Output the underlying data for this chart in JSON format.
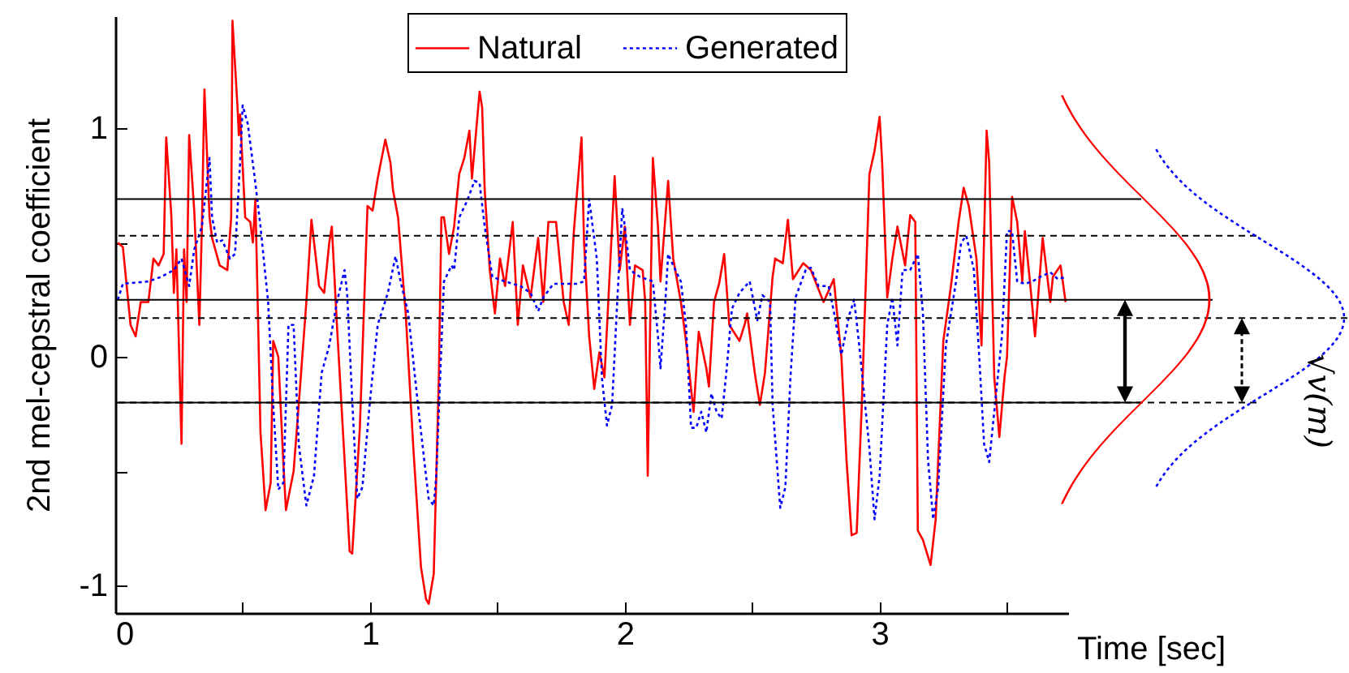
{
  "chart_data": {
    "type": "line",
    "xlabel": "Time [sec]",
    "ylabel": "2nd mel-cepstral coefficient",
    "xlim": [
      0,
      3.74
    ],
    "ylim": [
      -1.12,
      1.49
    ],
    "xticks": [
      0,
      {
        "value": 0.5,
        "label": null
      },
      1,
      {
        "value": 1.5,
        "label": null
      },
      2,
      {
        "value": 2.5,
        "label": null
      },
      3,
      {
        "value": 3.5,
        "label": null
      }
    ],
    "yticks": [
      -1,
      {
        "value": -0.5,
        "label": null
      },
      0,
      {
        "value": 0.5,
        "label": null
      },
      1
    ],
    "grid": false,
    "legend": "top",
    "marker": "none",
    "series": [
      {
        "name": "Natural",
        "color": "#ff0000",
        "line_style": "solid",
        "x": [
          0.01,
          0.03,
          0.06,
          0.08,
          0.1,
          0.13,
          0.15,
          0.17,
          0.19,
          0.2,
          0.22,
          0.23,
          0.24,
          0.26,
          0.27,
          0.28,
          0.29,
          0.31,
          0.33,
          0.34,
          0.35,
          0.37,
          0.38,
          0.41,
          0.44,
          0.455,
          0.46,
          0.48,
          0.485,
          0.49,
          0.51,
          0.53,
          0.54,
          0.55,
          0.56,
          0.57,
          0.59,
          0.61,
          0.62,
          0.64,
          0.66,
          0.67,
          0.7,
          0.72,
          0.75,
          0.77,
          0.8,
          0.82,
          0.84,
          0.85,
          0.87,
          0.9,
          0.92,
          0.93,
          0.96,
          0.99,
          1.01,
          1.03,
          1.06,
          1.08,
          1.09,
          1.11,
          1.14,
          1.17,
          1.2,
          1.22,
          1.23,
          1.25,
          1.27,
          1.28,
          1.29,
          1.31,
          1.33,
          1.35,
          1.37,
          1.39,
          1.4,
          1.43,
          1.44,
          1.45,
          1.47,
          1.49,
          1.51,
          1.53,
          1.56,
          1.58,
          1.6,
          1.63,
          1.66,
          1.68,
          1.7,
          1.73,
          1.76,
          1.78,
          1.8,
          1.83,
          1.84,
          1.86,
          1.88,
          1.9,
          1.92,
          1.96,
          1.98,
          2.0,
          2.02,
          2.04,
          2.07,
          2.08,
          2.09,
          2.11,
          2.13,
          2.14,
          2.17,
          2.19,
          2.22,
          2.24,
          2.26,
          2.27,
          2.29,
          2.32,
          2.33,
          2.35,
          2.37,
          2.39,
          2.41,
          2.45,
          2.47,
          2.48,
          2.51,
          2.53,
          2.55,
          2.58,
          2.59,
          2.62,
          2.64,
          2.66,
          2.7,
          2.73,
          2.78,
          2.82,
          2.85,
          2.87,
          2.89,
          2.91,
          2.93,
          2.96,
          2.98,
          3.0,
          3.01,
          3.03,
          3.05,
          3.07,
          3.1,
          3.12,
          3.14,
          3.15,
          3.17,
          3.2,
          3.22,
          3.25,
          3.28,
          3.31,
          3.33,
          3.35,
          3.38,
          3.4,
          3.42,
          3.43,
          3.45,
          3.47,
          3.49,
          3.5,
          3.52,
          3.54,
          3.56,
          3.57,
          3.59,
          3.61,
          3.64,
          3.67,
          3.68,
          3.71,
          3.73
        ],
        "values": [
          0.5,
          0.48,
          0.14,
          0.09,
          0.24,
          0.24,
          0.43,
          0.4,
          0.45,
          0.96,
          0.62,
          0.28,
          0.47,
          -0.38,
          0.47,
          0.24,
          0.97,
          0.64,
          0.14,
          0.57,
          1.17,
          0.61,
          0.52,
          0.4,
          0.38,
          0.61,
          1.47,
          1.09,
          0.97,
          1.06,
          0.61,
          0.59,
          0.5,
          0.69,
          0.19,
          -0.33,
          -0.67,
          -0.55,
          0.07,
          0.0,
          -0.47,
          -0.67,
          -0.5,
          -0.21,
          0.24,
          0.6,
          0.31,
          0.28,
          0.5,
          0.57,
          0.14,
          -0.45,
          -0.85,
          -0.86,
          -0.31,
          0.66,
          0.64,
          0.78,
          0.95,
          0.85,
          0.73,
          0.61,
          0.19,
          -0.4,
          -0.92,
          -1.06,
          -1.08,
          -0.95,
          -0.09,
          0.61,
          0.61,
          0.45,
          0.57,
          0.8,
          0.87,
          0.99,
          0.78,
          1.16,
          1.09,
          0.73,
          0.38,
          0.19,
          0.43,
          0.31,
          0.59,
          0.14,
          0.4,
          0.26,
          0.52,
          0.24,
          0.59,
          0.59,
          0.24,
          0.14,
          0.55,
          0.96,
          0.5,
          0.09,
          -0.14,
          0.02,
          -0.09,
          0.79,
          0.38,
          0.57,
          0.14,
          0.4,
          0.38,
          0.24,
          -0.52,
          0.87,
          0.57,
          0.33,
          0.77,
          0.43,
          0.24,
          0.07,
          -0.14,
          -0.24,
          0.11,
          -0.05,
          -0.13,
          0.24,
          0.32,
          0.45,
          0.14,
          0.07,
          0.14,
          0.19,
          -0.07,
          -0.21,
          -0.07,
          0.35,
          0.43,
          0.41,
          0.6,
          0.34,
          0.41,
          0.38,
          0.24,
          0.34,
          0.0,
          -0.45,
          -0.78,
          -0.77,
          -0.21,
          0.8,
          0.9,
          1.05,
          0.85,
          0.26,
          0.43,
          0.57,
          0.4,
          0.62,
          0.59,
          -0.76,
          -0.8,
          -0.91,
          -0.71,
          0.07,
          0.31,
          0.59,
          0.74,
          0.66,
          0.43,
          0.05,
          0.99,
          0.85,
          -0.09,
          -0.35,
          -0.09,
          0.0,
          0.7,
          0.59,
          0.33,
          0.55,
          0.33,
          0.09,
          0.52,
          0.24,
          0.35,
          0.4,
          0.24
        ]
      },
      {
        "name": "Generated",
        "color": "#0000ff",
        "line_style": "dotted",
        "x": [
          0.01,
          0.03,
          0.13,
          0.18,
          0.23,
          0.26,
          0.28,
          0.29,
          0.31,
          0.34,
          0.37,
          0.38,
          0.4,
          0.42,
          0.45,
          0.47,
          0.49,
          0.5,
          0.52,
          0.55,
          0.57,
          0.6,
          0.62,
          0.64,
          0.66,
          0.68,
          0.7,
          0.72,
          0.75,
          0.78,
          0.81,
          0.84,
          0.87,
          0.9,
          0.91,
          0.93,
          0.95,
          0.97,
          1.0,
          1.03,
          1.07,
          1.1,
          1.12,
          1.15,
          1.19,
          1.23,
          1.25,
          1.26,
          1.28,
          1.29,
          1.32,
          1.33,
          1.35,
          1.38,
          1.41,
          1.43,
          1.45,
          1.48,
          1.53,
          1.59,
          1.63,
          1.66,
          1.68,
          1.72,
          1.76,
          1.81,
          1.84,
          1.86,
          1.89,
          1.91,
          1.93,
          1.95,
          1.97,
          1.99,
          2.0,
          2.02,
          2.06,
          2.11,
          2.13,
          2.14,
          2.16,
          2.17,
          2.19,
          2.22,
          2.24,
          2.26,
          2.28,
          2.3,
          2.32,
          2.34,
          2.36,
          2.38,
          2.4,
          2.42,
          2.45,
          2.49,
          2.52,
          2.54,
          2.57,
          2.58,
          2.61,
          2.63,
          2.65,
          2.67,
          2.71,
          2.73,
          2.76,
          2.8,
          2.82,
          2.85,
          2.88,
          2.9,
          2.92,
          2.96,
          2.98,
          3.0,
          3.03,
          3.05,
          3.07,
          3.09,
          3.12,
          3.15,
          3.17,
          3.19,
          3.21,
          3.23,
          3.26,
          3.3,
          3.32,
          3.34,
          3.37,
          3.39,
          3.41,
          3.43,
          3.45,
          3.48,
          3.5,
          3.52,
          3.54,
          3.57,
          3.6,
          3.63,
          3.67,
          3.7,
          3.73
        ],
        "values": [
          0.25,
          0.32,
          0.33,
          0.35,
          0.38,
          0.43,
          0.35,
          0.31,
          0.47,
          0.57,
          0.87,
          0.61,
          0.5,
          0.51,
          0.43,
          0.45,
          0.85,
          1.1,
          1.02,
          0.76,
          0.57,
          0.24,
          -0.21,
          -0.58,
          -0.55,
          0.14,
          0.14,
          -0.38,
          -0.65,
          -0.52,
          -0.07,
          0.05,
          0.24,
          0.38,
          0.28,
          -0.19,
          -0.62,
          -0.57,
          -0.19,
          0.14,
          0.28,
          0.44,
          0.33,
          0.19,
          -0.23,
          -0.62,
          -0.65,
          -0.52,
          0.05,
          0.33,
          0.4,
          0.38,
          0.61,
          0.68,
          0.77,
          0.76,
          0.57,
          0.35,
          0.33,
          0.31,
          0.28,
          0.2,
          0.26,
          0.32,
          0.32,
          0.32,
          0.33,
          0.69,
          0.43,
          -0.09,
          -0.3,
          -0.21,
          0.24,
          0.65,
          0.57,
          0.38,
          0.35,
          0.33,
          0.09,
          -0.05,
          0.26,
          0.45,
          0.4,
          0.33,
          0.14,
          -0.31,
          -0.31,
          -0.24,
          -0.33,
          -0.16,
          -0.24,
          -0.27,
          -0.05,
          0.21,
          0.28,
          0.33,
          0.16,
          0.27,
          0.24,
          -0.21,
          -0.66,
          -0.57,
          -0.09,
          0.26,
          0.38,
          0.39,
          0.31,
          0.31,
          0.2,
          0.01,
          0.18,
          0.25,
          0.05,
          -0.4,
          -0.71,
          -0.52,
          0.14,
          0.26,
          0.05,
          0.38,
          0.38,
          0.45,
          0.19,
          -0.45,
          -0.71,
          -0.57,
          0.05,
          0.33,
          0.5,
          0.53,
          0.38,
          0.02,
          -0.38,
          -0.46,
          -0.24,
          0.09,
          0.55,
          0.55,
          0.33,
          0.32,
          0.33,
          0.35,
          0.37,
          0.34,
          0.35
        ]
      }
    ],
    "ref_lines": [
      {
        "axis": "y",
        "value": 0.69,
        "color": "#000000",
        "line_style": "solid"
      },
      {
        "axis": "y",
        "value": 0.25,
        "color": "#000000",
        "line_style": "solid"
      },
      {
        "axis": "y",
        "value": -0.2,
        "color": "#000000",
        "line_style": "solid"
      },
      {
        "axis": "y",
        "value": 0.53,
        "color": "#000000",
        "line_style": "dashed"
      },
      {
        "axis": "y",
        "value": 0.17,
        "color": "#000000",
        "line_style": "dashed"
      },
      {
        "axis": "y",
        "value": -0.2,
        "color": "#000000",
        "line_style": "dashed"
      }
    ],
    "annotations": [
      "√v(m)"
    ]
  }
}
